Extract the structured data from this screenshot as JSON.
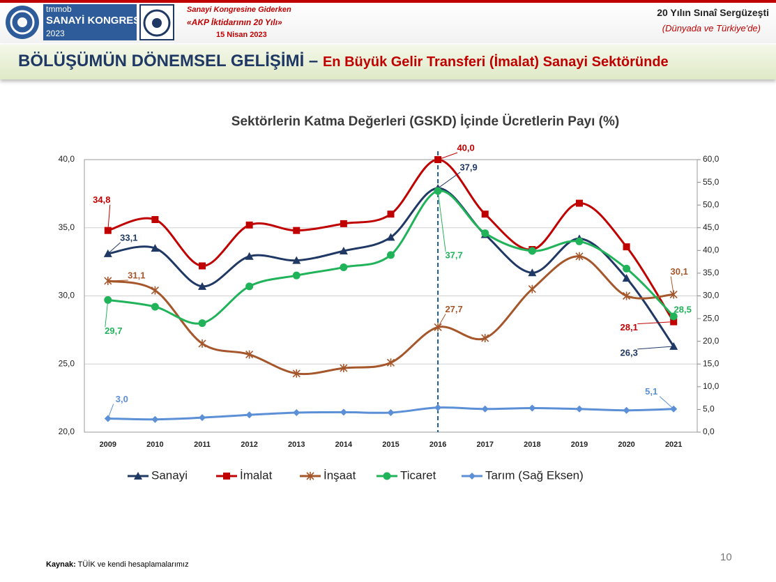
{
  "header": {
    "org": "tmmob",
    "congress": "SANAYİ KONGRESİ",
    "year": "2023",
    "event_line1": "Sanayi Kongresine Giderken",
    "event_line2": "«AKP İktidarının 20 Yılı»",
    "event_date": "15 Nisan 2023",
    "right_title": "20 Yılın Sınaî Sergüzeşti",
    "right_subtitle": "(Dünyada ve Türkiye'de)"
  },
  "slide_title": {
    "main": "BÖLÜŞÜMÜN DÖNEMSEL GELİŞİMİ",
    "dash": "–",
    "highlight": "En Büyük Gelir Transferi (İmalat) Sanayi Sektöründe"
  },
  "chart_data": {
    "type": "line",
    "title": "Sektörlerin Katma Değerleri (GSKD) İçinde Ücretlerin Payı (%)",
    "categories": [
      "2009",
      "2010",
      "2011",
      "2012",
      "2013",
      "2014",
      "2015",
      "2016",
      "2017",
      "2018",
      "2019",
      "2020",
      "2021"
    ],
    "vline_category": "2016",
    "ylim": [
      20,
      40
    ],
    "yticks": [
      {
        "value": 20,
        "label": "20,0"
      },
      {
        "value": 25,
        "label": "25,0"
      },
      {
        "value": 30,
        "label": "30,0"
      },
      {
        "value": 35,
        "label": "35,0"
      },
      {
        "value": 40,
        "label": "40,0"
      }
    ],
    "y2lim": [
      0,
      60
    ],
    "y2ticks": [
      {
        "value": 0,
        "label": "0,0"
      },
      {
        "value": 5,
        "label": "5,0"
      },
      {
        "value": 10,
        "label": "10,0"
      },
      {
        "value": 15,
        "label": "15,0"
      },
      {
        "value": 20,
        "label": "20,0"
      },
      {
        "value": 25,
        "label": "25,0"
      },
      {
        "value": 30,
        "label": "30,0"
      },
      {
        "value": 35,
        "label": "35,0"
      },
      {
        "value": 40,
        "label": "40,0"
      },
      {
        "value": 45,
        "label": "45,0"
      },
      {
        "value": 50,
        "label": "50,0"
      },
      {
        "value": 55,
        "label": "55,0"
      },
      {
        "value": 60,
        "label": "60,0"
      }
    ],
    "grid": true,
    "legend": "bottom",
    "series": [
      {
        "name": "Sanayi",
        "color": "#1f3864",
        "marker": "triangle",
        "values": [
          33.1,
          33.5,
          30.7,
          32.9,
          32.6,
          33.3,
          34.3,
          37.9,
          34.5,
          31.7,
          34.2,
          31.3,
          26.3
        ],
        "value_labels": [
          "33,1",
          null,
          null,
          null,
          null,
          null,
          null,
          "37,9",
          null,
          null,
          null,
          null,
          "26,3"
        ]
      },
      {
        "name": "İmalat",
        "color": "#c00000",
        "marker": "square",
        "values": [
          34.8,
          35.6,
          32.2,
          35.2,
          34.8,
          35.3,
          36.0,
          40.0,
          36.0,
          33.4,
          36.8,
          33.6,
          28.1
        ],
        "value_labels": [
          "34,8",
          null,
          null,
          null,
          null,
          null,
          null,
          "40,0",
          null,
          null,
          null,
          null,
          "28,1"
        ]
      },
      {
        "name": "İnşaat",
        "color": "#a5562a",
        "marker": "star",
        "values": [
          31.1,
          30.4,
          26.5,
          25.7,
          24.3,
          24.7,
          25.1,
          27.7,
          26.9,
          30.5,
          32.9,
          30.0,
          30.1
        ],
        "value_labels": [
          "31,1",
          null,
          null,
          null,
          null,
          null,
          null,
          "27,7",
          null,
          null,
          null,
          null,
          "30,1"
        ]
      },
      {
        "name": "Ticaret",
        "color": "#21b35a",
        "marker": "circle",
        "values": [
          29.7,
          29.2,
          28.0,
          30.7,
          31.5,
          32.1,
          33.0,
          37.7,
          34.6,
          33.3,
          34.0,
          32.0,
          28.5
        ],
        "value_labels": [
          "29,7",
          null,
          null,
          null,
          null,
          null,
          null,
          "37,7",
          null,
          null,
          null,
          null,
          "28,5"
        ]
      },
      {
        "name": "Tarım (Sağ Eksen)",
        "color": "#5b8fd6",
        "marker": "diamond",
        "axis": "y2",
        "values": [
          3.0,
          2.8,
          3.2,
          3.8,
          4.3,
          4.4,
          4.3,
          5.4,
          5.1,
          5.3,
          5.1,
          4.8,
          5.1
        ],
        "value_labels": [
          "3,0",
          null,
          null,
          null,
          null,
          null,
          null,
          null,
          null,
          null,
          null,
          null,
          "5,1"
        ]
      }
    ]
  },
  "footer": {
    "source_label": "Kaynak:",
    "source_text": "TÜİK ve kendi hesaplamalarımız",
    "page": "10"
  }
}
